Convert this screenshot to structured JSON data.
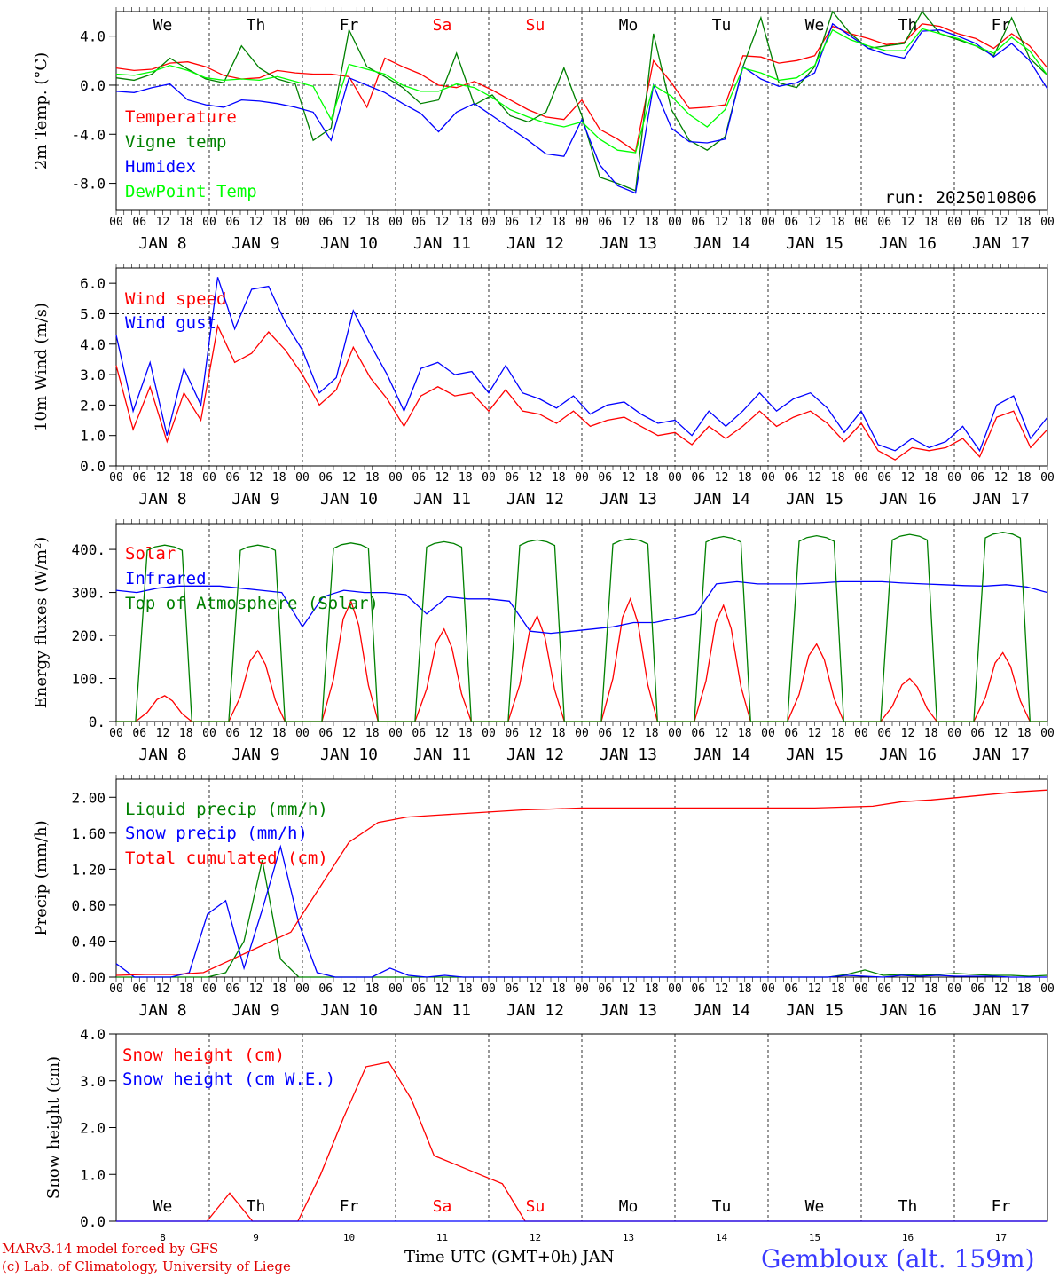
{
  "credits": [
    "MARv3.14 model forced by GFS",
    "(c) Lab. of Climatology, University of Liege"
  ],
  "station": "Gembloux (alt. 159m)",
  "xaxis_title": "Time UTC (GMT+0h) JAN",
  "run": "run: 2025010806",
  "hour_labels": [
    "00",
    "06",
    "12",
    "18"
  ],
  "end_label": "00",
  "day_labels": [
    "JAN  8",
    "JAN  9",
    "JAN 10",
    "JAN 11",
    "JAN 12",
    "JAN 13",
    "JAN 14",
    "JAN 15",
    "JAN 16",
    "JAN 17"
  ],
  "weekdays": [
    "We",
    "Th",
    "Fr",
    "Sa",
    "Su",
    "Mo",
    "Tu",
    "We",
    "Th",
    "Fr"
  ],
  "weekday_colors": [
    "#000000",
    "#000000",
    "#000000",
    "#ff0000",
    "#ff0000",
    "#000000",
    "#000000",
    "#000000",
    "#000000",
    "#000000"
  ],
  "bottom_day_numbers": [
    "8",
    "9",
    "10",
    "11",
    "12",
    "13",
    "14",
    "15",
    "16",
    "17"
  ],
  "chart_data": [
    {
      "id": "temp",
      "type": "line",
      "ylabel": "2m Temp. (°C)",
      "ylim": [
        -10.2,
        6
      ],
      "yticks": [
        -8,
        -4,
        0,
        4
      ],
      "yticklabels": [
        "-8.0",
        "-4.0",
        "0.0",
        "4.0"
      ],
      "reference_line": 0,
      "series": [
        {
          "name": "Temperature",
          "color": "#ff0000",
          "values": [
            1.4,
            1.2,
            1.3,
            1.8,
            1.9,
            1.5,
            0.8,
            0.5,
            0.6,
            1.2,
            1.0,
            0.9,
            0.9,
            0.7,
            -1.8,
            2.2,
            1.5,
            0.9,
            0.0,
            -0.2,
            0.3,
            -0.4,
            -1.2,
            -2.0,
            -2.6,
            -2.8,
            -1.2,
            -3.6,
            -4.4,
            -5.4,
            2.0,
            0.2,
            -1.9,
            -1.8,
            -1.6,
            2.4,
            2.3,
            1.8,
            2.0,
            2.4,
            4.8,
            4.2,
            3.8,
            3.3,
            3.5,
            5.0,
            4.8,
            4.2,
            3.8,
            3.0,
            4.2,
            3.2,
            1.4
          ]
        },
        {
          "name": "Vigne temp",
          "color": "#008000",
          "values": [
            0.6,
            0.4,
            0.9,
            2.2,
            1.3,
            0.5,
            0.2,
            3.2,
            1.4,
            0.5,
            0.1,
            -4.5,
            -3.5,
            4.5,
            1.5,
            0.7,
            -0.2,
            -1.5,
            -1.2,
            2.6,
            -1.6,
            -0.8,
            -2.5,
            -3.0,
            -2.2,
            1.4,
            -2.5,
            -7.5,
            -8.0,
            -8.6,
            4.2,
            -2.0,
            -4.5,
            -5.3,
            -4.2,
            1.5,
            5.5,
            0.2,
            -0.2,
            1.5,
            6.0,
            4.2,
            3.0,
            3.2,
            3.4,
            6.0,
            4.2,
            3.7,
            3.2,
            2.4,
            5.5,
            2.2,
            0.8
          ]
        },
        {
          "name": "Humidex",
          "color": "#0000ff",
          "values": [
            -0.5,
            -0.6,
            -0.2,
            0.1,
            -1.2,
            -1.6,
            -1.8,
            -1.2,
            -1.3,
            -1.5,
            -1.8,
            -2.2,
            -4.5,
            0.6,
            0.0,
            -0.6,
            -1.5,
            -2.3,
            -3.8,
            -2.2,
            -1.5,
            -2.5,
            -3.5,
            -4.5,
            -5.6,
            -5.8,
            -2.8,
            -6.5,
            -8.2,
            -8.8,
            0.0,
            -3.5,
            -4.6,
            -4.7,
            -4.4,
            1.5,
            0.5,
            -0.1,
            0.2,
            1.0,
            5.0,
            4.0,
            3.0,
            2.5,
            2.2,
            4.4,
            4.5,
            4.0,
            3.4,
            2.3,
            3.4,
            2.0,
            -0.3
          ]
        },
        {
          "name": "DewPoint Temp",
          "color": "#00ff00",
          "values": [
            0.9,
            0.8,
            1.1,
            1.6,
            1.2,
            0.6,
            0.4,
            0.5,
            0.4,
            0.7,
            0.3,
            -0.1,
            -2.8,
            1.7,
            1.3,
            0.9,
            0.0,
            -0.5,
            -0.5,
            0.1,
            -0.2,
            -1.0,
            -2.0,
            -2.6,
            -3.1,
            -3.4,
            -3.0,
            -4.4,
            -5.3,
            -5.5,
            0.0,
            -0.9,
            -2.4,
            -3.4,
            -2.0,
            1.4,
            1.0,
            0.4,
            0.6,
            1.6,
            4.5,
            3.7,
            3.2,
            2.8,
            2.8,
            4.6,
            4.2,
            3.8,
            3.2,
            2.6,
            3.9,
            2.8,
            0.8
          ]
        }
      ]
    },
    {
      "id": "wind",
      "type": "line",
      "ylabel": "10m Wind (m/s)",
      "ylim": [
        0,
        6.5
      ],
      "yticks": [
        0,
        1,
        2,
        3,
        4,
        5,
        6
      ],
      "yticklabels": [
        "0.0",
        "1.0",
        "2.0",
        "3.0",
        "4.0",
        "5.0",
        "6.0"
      ],
      "reference_line": 5,
      "series": [
        {
          "name": "Wind speed",
          "color": "#ff0000",
          "values": [
            3.3,
            1.2,
            2.6,
            0.8,
            2.4,
            1.5,
            4.6,
            3.4,
            3.7,
            4.4,
            3.8,
            3.0,
            2.0,
            2.5,
            3.9,
            2.9,
            2.2,
            1.3,
            2.3,
            2.6,
            2.3,
            2.4,
            1.8,
            2.5,
            1.8,
            1.7,
            1.4,
            1.8,
            1.3,
            1.5,
            1.6,
            1.3,
            1.0,
            1.1,
            0.7,
            1.3,
            0.9,
            1.3,
            1.8,
            1.3,
            1.6,
            1.8,
            1.4,
            0.8,
            1.4,
            0.5,
            0.2,
            0.6,
            0.5,
            0.6,
            0.9,
            0.3,
            1.6,
            1.8,
            0.6,
            1.2
          ]
        },
        {
          "name": "Wind gust",
          "color": "#0000ff",
          "values": [
            4.3,
            1.8,
            3.4,
            1.0,
            3.2,
            2.0,
            6.2,
            4.5,
            5.8,
            5.9,
            4.7,
            3.8,
            2.4,
            2.9,
            5.1,
            4.0,
            3.0,
            1.8,
            3.2,
            3.4,
            3.0,
            3.1,
            2.4,
            3.3,
            2.4,
            2.2,
            1.9,
            2.3,
            1.7,
            2.0,
            2.1,
            1.7,
            1.4,
            1.5,
            1.0,
            1.8,
            1.3,
            1.8,
            2.4,
            1.8,
            2.2,
            2.4,
            1.9,
            1.1,
            1.8,
            0.7,
            0.5,
            0.9,
            0.6,
            0.8,
            1.3,
            0.5,
            2.0,
            2.3,
            0.9,
            1.6
          ]
        }
      ]
    },
    {
      "id": "energy",
      "type": "line",
      "ylabel": "Energy fluxes (W/m²)",
      "ylim": [
        0,
        460
      ],
      "yticks": [
        0,
        100,
        200,
        300,
        400
      ],
      "yticklabels": [
        "0.",
        "100.",
        "200.",
        "300.",
        "400."
      ],
      "series": [
        {
          "name": "Solar",
          "color": "#ff0000",
          "peaks": [
            60,
            165,
            280,
            215,
            245,
            285,
            270,
            180,
            100,
            160
          ]
        },
        {
          "name": "Infrared",
          "color": "#0000ff",
          "values": [
            305,
            300,
            310,
            315,
            315,
            315,
            310,
            305,
            300,
            220,
            290,
            305,
            300,
            300,
            295,
            250,
            290,
            285,
            285,
            280,
            210,
            205,
            210,
            215,
            220,
            230,
            230,
            240,
            250,
            320,
            325,
            320,
            320,
            320,
            322,
            325,
            325,
            325,
            322,
            320,
            318,
            316,
            315,
            318,
            313,
            300
          ]
        },
        {
          "name": "Top of Atmosphere (Solar)",
          "color": "#008000",
          "peaks": [
            410,
            410,
            415,
            418,
            422,
            425,
            430,
            432,
            435,
            440
          ]
        }
      ]
    },
    {
      "id": "precip",
      "type": "line",
      "ylabel": "Precip (mm/h)",
      "ylim": [
        0,
        2.2
      ],
      "yticks": [
        0,
        0.4,
        0.8,
        1.2,
        1.6,
        2.0
      ],
      "yticklabels": [
        "0.00",
        "0.40",
        "0.80",
        "1.20",
        "1.60",
        "2.00"
      ],
      "series": [
        {
          "name": "Liquid precip (mm/h)",
          "color": "#008000",
          "values": [
            0,
            0,
            0,
            0,
            0,
            0,
            0.05,
            0.4,
            1.3,
            0.2,
            0,
            0,
            0,
            0,
            0,
            0,
            0,
            0,
            0,
            0,
            0,
            0,
            0,
            0,
            0,
            0,
            0,
            0,
            0,
            0,
            0,
            0,
            0,
            0,
            0,
            0,
            0,
            0,
            0,
            0,
            0.03,
            0.08,
            0.02,
            0.03,
            0.02,
            0.03,
            0.04,
            0.03,
            0.02,
            0.02,
            0.01,
            0.02
          ]
        },
        {
          "name": "Snow precip (mm/h)",
          "color": "#0000ff",
          "values": [
            0.15,
            0,
            0,
            0,
            0.05,
            0.7,
            0.85,
            0.1,
            0.75,
            1.45,
            0.6,
            0.05,
            0,
            0,
            0,
            0.1,
            0.02,
            0,
            0.02,
            0,
            0,
            0,
            0,
            0,
            0,
            0,
            0,
            0,
            0,
            0,
            0,
            0,
            0,
            0,
            0,
            0,
            0,
            0,
            0,
            0,
            0.02,
            0.01,
            0,
            0.02,
            0.01,
            0.02,
            0.01,
            0.01,
            0.01,
            0,
            0,
            0
          ]
        },
        {
          "name": "Total cumulated (cm)",
          "color": "#ff0000",
          "values": [
            0.02,
            0.03,
            0.03,
            0.05,
            0.2,
            0.35,
            0.5,
            1.0,
            1.5,
            1.72,
            1.78,
            1.8,
            1.82,
            1.84,
            1.86,
            1.87,
            1.88,
            1.88,
            1.88,
            1.88,
            1.88,
            1.88,
            1.88,
            1.88,
            1.88,
            1.89,
            1.9,
            1.95,
            1.97,
            2.0,
            2.03,
            2.06,
            2.08
          ]
        }
      ]
    },
    {
      "id": "snow",
      "type": "line",
      "ylabel": "Snow height (cm)",
      "ylim": [
        0,
        4
      ],
      "yticks": [
        0,
        1,
        2,
        3,
        4
      ],
      "yticklabels": [
        "0.0",
        "1.0",
        "2.0",
        "3.0",
        "4.0"
      ],
      "series": [
        {
          "name": "Snow height (cm)",
          "color": "#ff0000",
          "values": [
            0,
            0,
            0,
            0,
            0,
            0.6,
            0,
            0,
            0,
            1.0,
            2.2,
            3.3,
            3.4,
            2.6,
            1.4,
            1.2,
            1.0,
            0.8,
            0,
            0,
            0,
            0,
            0,
            0,
            0,
            0,
            0,
            0,
            0,
            0,
            0,
            0,
            0,
            0,
            0,
            0,
            0,
            0,
            0,
            0,
            0,
            0
          ]
        },
        {
          "name": "Snow height (cm W.E.)",
          "color": "#0000ff",
          "values": [
            0,
            0,
            0,
            0,
            0,
            0,
            0,
            0,
            0,
            0,
            0,
            0,
            0,
            0,
            0,
            0,
            0,
            0,
            0,
            0,
            0,
            0,
            0,
            0,
            0,
            0,
            0,
            0,
            0,
            0,
            0,
            0,
            0,
            0,
            0,
            0,
            0,
            0,
            0,
            0,
            0,
            0
          ]
        }
      ]
    }
  ]
}
